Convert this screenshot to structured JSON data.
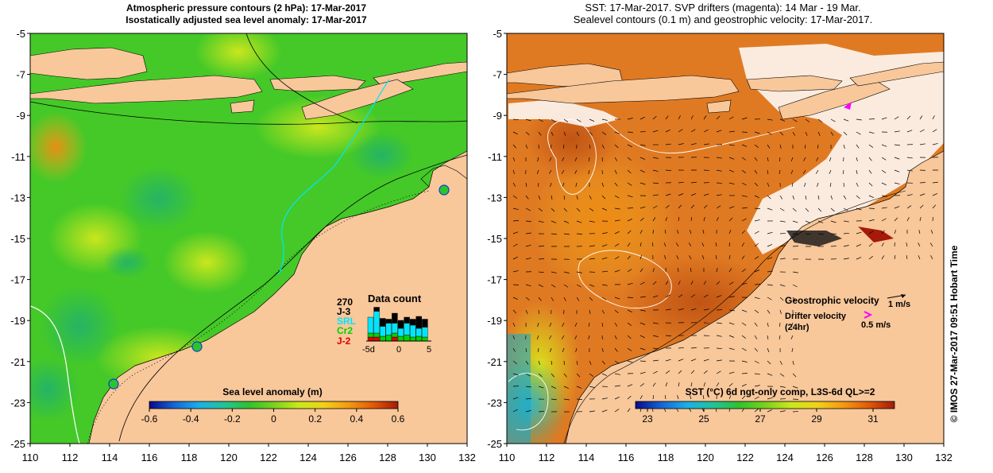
{
  "left_panel": {
    "title_line1": "Atmospheric pressure contours (2 hPa): 17-Mar-2017",
    "title_line2": "Isostatically adjusted sea level anomaly: 17-Mar-2017",
    "colorbar": {
      "label": "Sea level anomaly (m)",
      "ticks": [
        "-0.6",
        "-0.4",
        "-0.2",
        "0",
        "0.2",
        "0.4",
        "0.6"
      ],
      "colors": [
        "#0a0a8a",
        "#1565d8",
        "#1ab0e8",
        "#22c39a",
        "#2fc22f",
        "#77d21d",
        "#c8e81c",
        "#f0d21a",
        "#f59a12",
        "#e25a0a",
        "#a51a0a"
      ]
    },
    "data_count": {
      "title": "Data count",
      "max_label": "270",
      "series": [
        {
          "name": "J-3",
          "color": "#000000"
        },
        {
          "name": "SRL",
          "color": "#00e5ff"
        },
        {
          "name": "Cr2",
          "color": "#00d400"
        },
        {
          "name": "J-2",
          "color": "#e00000"
        }
      ],
      "x_ticks": [
        "-5d",
        "0",
        "5"
      ],
      "bars": [
        {
          "j2": 0.1,
          "cr2": 0.1,
          "srl": 0.4,
          "j3": 0.0
        },
        {
          "j2": 0.1,
          "cr2": 0.1,
          "srl": 0.55,
          "j3": 0.1
        },
        {
          "j2": 0.0,
          "cr2": 0.12,
          "srl": 0.25,
          "j3": 0.2
        },
        {
          "j2": 0.0,
          "cr2": 0.15,
          "srl": 0.3,
          "j3": 0.1
        },
        {
          "j2": 0.1,
          "cr2": 0.1,
          "srl": 0.25,
          "j3": 0.25
        },
        {
          "j2": 0.0,
          "cr2": 0.12,
          "srl": 0.2,
          "j3": 0.2
        },
        {
          "j2": 0.0,
          "cr2": 0.15,
          "srl": 0.3,
          "j3": 0.15
        },
        {
          "j2": 0.0,
          "cr2": 0.1,
          "srl": 0.3,
          "j3": 0.15
        },
        {
          "j2": 0.0,
          "cr2": 0.12,
          "srl": 0.2,
          "j3": 0.3
        },
        {
          "j2": 0.0,
          "cr2": 0.1,
          "srl": 0.25,
          "j3": 0.2
        }
      ]
    }
  },
  "right_panel": {
    "title_line1": "SST: 17-Mar-2017. SVP drifters (magenta): 14 Mar - 19 Mar.",
    "title_line2": "Sealevel contours (0.1 m) and geostrophic velocity: 17-Mar-2017.",
    "geostrophic_label": "Geostrophic velocity",
    "geostrophic_scale": "1 m/s",
    "drifter_label_line1": "Drifter velocity",
    "drifter_label_line2": "(24hr)",
    "drifter_scale": "0.5 m/s",
    "colorbar": {
      "label": "SST (°C) 6d ngt-only comp, L3S-6d QL>=2",
      "ticks": [
        "23",
        "25",
        "27",
        "29",
        "31"
      ],
      "colors": [
        "#0a0a8a",
        "#1565d8",
        "#1ab0e8",
        "#22c39a",
        "#2fc22f",
        "#77d21d",
        "#c8e81c",
        "#f0d21a",
        "#f59a12",
        "#e25a0a",
        "#a51a0a"
      ]
    }
  },
  "axes": {
    "x_ticks": [
      "110",
      "112",
      "114",
      "116",
      "118",
      "120",
      "122",
      "124",
      "126",
      "128",
      "130",
      "132"
    ],
    "y_ticks": [
      "-5",
      "-7",
      "-9",
      "-11",
      "-13",
      "-15",
      "-17",
      "-19",
      "-21",
      "-23",
      "-25"
    ]
  },
  "credit": "© IMOS 27-Mar-2017 09:51 Hobart Time",
  "colors": {
    "land": "#f8c79a",
    "ocean_green": "#44c928",
    "sst_orange": "#e07a22",
    "magenta": "#ff00ff"
  }
}
